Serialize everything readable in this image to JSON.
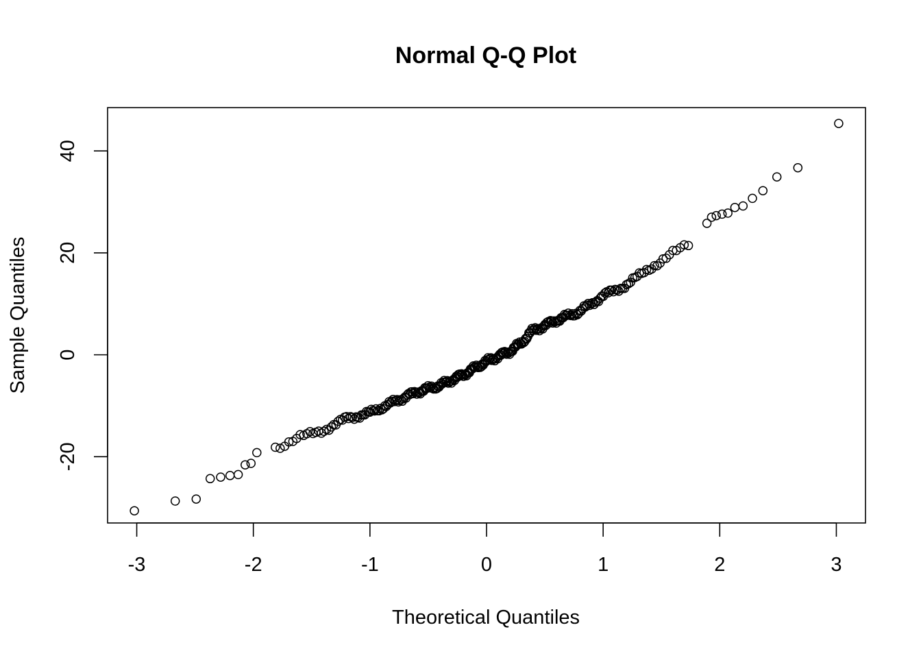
{
  "chart_data": {
    "type": "scatter",
    "title": "Normal Q-Q Plot",
    "xlabel": "Theoretical Quantiles",
    "ylabel": "Sample Quantiles",
    "xlim": [
      -3.25,
      3.25
    ],
    "ylim": [
      -33,
      48.5
    ],
    "x_ticks": [
      -3,
      -2,
      -1,
      0,
      1,
      2,
      3
    ],
    "x_tick_labels": [
      "-3",
      "-2",
      "-1",
      "0",
      "1",
      "2",
      "3"
    ],
    "y_ticks": [
      -20,
      0,
      20,
      40
    ],
    "y_tick_labels": [
      "-20",
      "0",
      "20",
      "40"
    ],
    "grid": false,
    "legend": "none",
    "marker": "open-circle",
    "n_points": 300,
    "tail_points": [
      {
        "x": -3.02,
        "y": -30.6
      },
      {
        "x": -2.67,
        "y": -28.7
      },
      {
        "x": -2.49,
        "y": -28.3
      },
      {
        "x": -2.37,
        "y": -24.3
      },
      {
        "x": -2.28,
        "y": -24.0
      },
      {
        "x": -2.2,
        "y": -23.7
      },
      {
        "x": -2.13,
        "y": -23.5
      },
      {
        "x": -2.07,
        "y": -21.6
      },
      {
        "x": -2.02,
        "y": -21.3
      },
      {
        "x": -1.97,
        "y": -19.2
      },
      {
        "x": 1.89,
        "y": 25.8
      },
      {
        "x": 1.93,
        "y": 27.0
      },
      {
        "x": 1.97,
        "y": 27.3
      },
      {
        "x": 2.02,
        "y": 27.6
      },
      {
        "x": 2.07,
        "y": 27.8
      },
      {
        "x": 2.13,
        "y": 28.9
      },
      {
        "x": 2.2,
        "y": 29.2
      },
      {
        "x": 2.28,
        "y": 30.7
      },
      {
        "x": 2.37,
        "y": 32.2
      },
      {
        "x": 2.49,
        "y": 34.9
      },
      {
        "x": 2.67,
        "y": 36.7
      },
      {
        "x": 3.02,
        "y": 45.4
      }
    ],
    "body_curve": [
      {
        "x": -1.95,
        "y": -18.6
      },
      {
        "x": -1.75,
        "y": -17.8
      },
      {
        "x": -1.6,
        "y": -16.2
      },
      {
        "x": -1.4,
        "y": -14.8
      },
      {
        "x": -1.2,
        "y": -12.5
      },
      {
        "x": -1.0,
        "y": -11.4
      },
      {
        "x": -0.8,
        "y": -9.3
      },
      {
        "x": -0.6,
        "y": -7.3
      },
      {
        "x": -0.4,
        "y": -6.0
      },
      {
        "x": -0.2,
        "y": -3.9
      },
      {
        "x": 0.0,
        "y": -1.3
      },
      {
        "x": 0.2,
        "y": 0.7
      },
      {
        "x": 0.3,
        "y": 2.3
      },
      {
        "x": 0.38,
        "y": 4.5
      },
      {
        "x": 0.6,
        "y": 6.8
      },
      {
        "x": 0.8,
        "y": 8.5
      },
      {
        "x": 1.0,
        "y": 11.6
      },
      {
        "x": 1.2,
        "y": 13.7
      },
      {
        "x": 1.4,
        "y": 17.0
      },
      {
        "x": 1.6,
        "y": 20.0
      },
      {
        "x": 1.87,
        "y": 23.0
      }
    ]
  }
}
